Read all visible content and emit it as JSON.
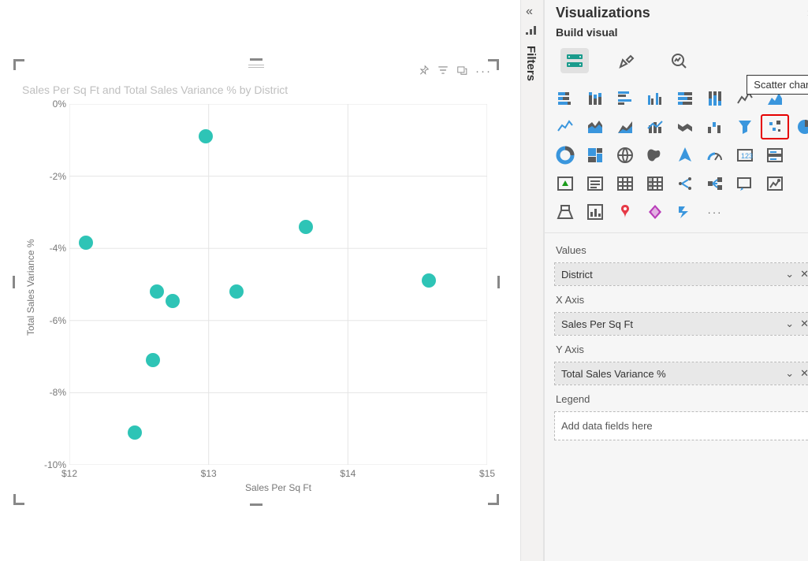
{
  "panel": {
    "title": "Visualizations",
    "subtitle": "Build visual",
    "filters_label": "Filters"
  },
  "tooltip": {
    "scatter": "Scatter chart"
  },
  "wells": {
    "values": {
      "label": "Values",
      "item": "District"
    },
    "xaxis": {
      "label": "X Axis",
      "item": "Sales Per Sq Ft"
    },
    "yaxis": {
      "label": "Y Axis",
      "item": "Total Sales Variance %"
    },
    "legend": {
      "label": "Legend",
      "placeholder": "Add data fields here"
    }
  },
  "chart": {
    "title": "Sales Per Sq Ft and Total Sales Variance % by District",
    "xlabel": "Sales Per Sq Ft",
    "ylabel": "Total Sales Variance %",
    "xlim": [
      12,
      15
    ],
    "ylim": [
      -10,
      0
    ],
    "xticks": [
      {
        "v": 12,
        "label": "$12"
      },
      {
        "v": 13,
        "label": "$13"
      },
      {
        "v": 14,
        "label": "$14"
      },
      {
        "v": 15,
        "label": "$15"
      }
    ],
    "yticks": [
      {
        "v": 0,
        "label": "0%"
      },
      {
        "v": -2,
        "label": "-2%"
      },
      {
        "v": -4,
        "label": "-4%"
      },
      {
        "v": -6,
        "label": "-6%"
      },
      {
        "v": -8,
        "label": "-8%"
      },
      {
        "v": -10,
        "label": "-10%"
      }
    ],
    "point_color": "#2ec4b6",
    "point_radius": 9,
    "grid_color": "#e5e5e5",
    "points": [
      {
        "x": 12.12,
        "y": -3.85
      },
      {
        "x": 12.47,
        "y": -9.1
      },
      {
        "x": 12.6,
        "y": -7.1
      },
      {
        "x": 12.63,
        "y": -5.2
      },
      {
        "x": 12.74,
        "y": -5.45
      },
      {
        "x": 12.98,
        "y": -0.9
      },
      {
        "x": 13.2,
        "y": -5.2
      },
      {
        "x": 13.7,
        "y": -3.4
      },
      {
        "x": 14.58,
        "y": -4.9
      }
    ]
  }
}
